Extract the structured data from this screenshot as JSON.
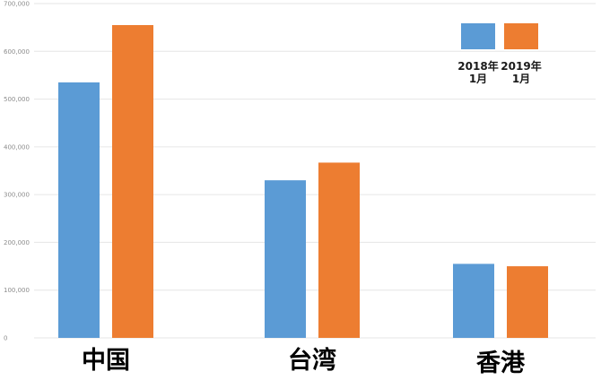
{
  "chart_data": {
    "type": "bar",
    "title": "",
    "xlabel": "",
    "ylabel": "",
    "categories": [
      "中国",
      "台湾",
      "香港"
    ],
    "series": [
      {
        "name": "2018年 1月",
        "label_lines": [
          "2018年",
          "1月"
        ],
        "color": "#5b9bd5",
        "values": [
          535000,
          330000,
          155000
        ]
      },
      {
        "name": "2019年 1月",
        "label_lines": [
          "2019年",
          "1月"
        ],
        "color": "#ed7d31",
        "values": [
          655000,
          367000,
          150000
        ]
      }
    ],
    "ylim": [
      0,
      700000
    ],
    "yticks": [
      0,
      100000,
      200000,
      300000,
      400000,
      500000,
      600000,
      700000
    ],
    "ytick_labels": [
      "0",
      "100,000",
      "200,000",
      "300,000",
      "400,000",
      "500,000",
      "600,000",
      "700,000"
    ],
    "grid": true,
    "gridline_color": "#e6e6e6",
    "legend_position": "top-right"
  }
}
